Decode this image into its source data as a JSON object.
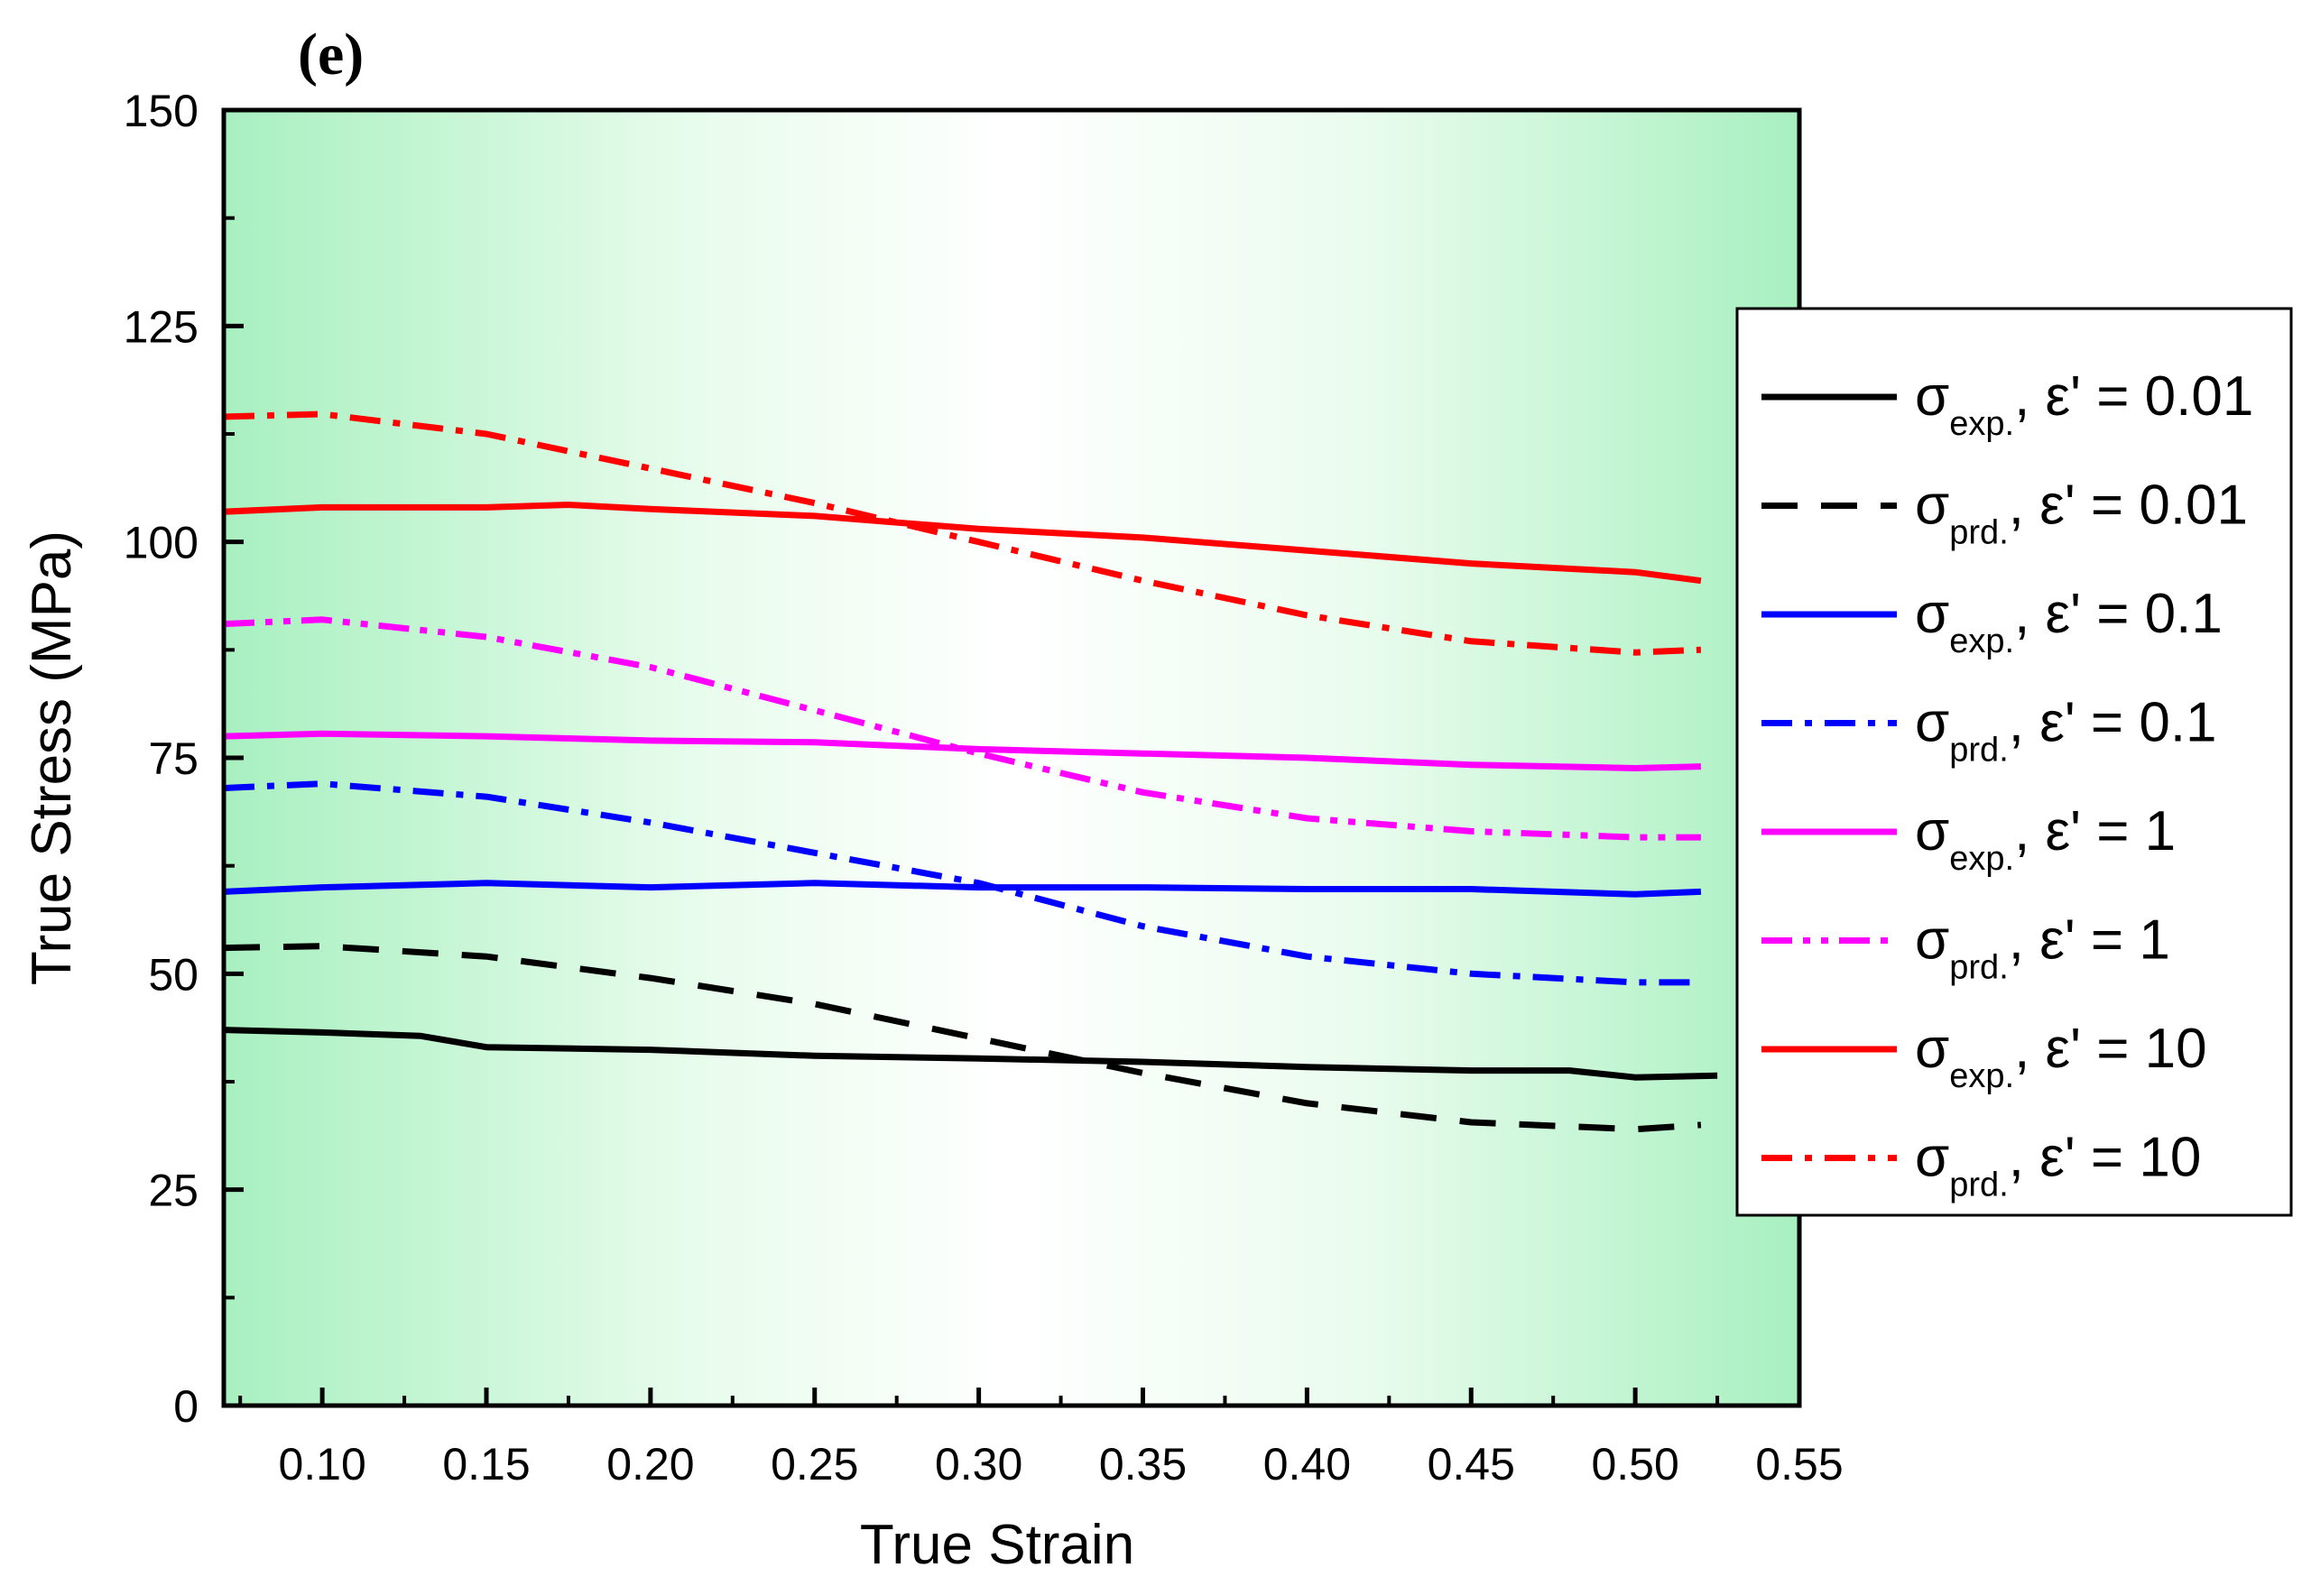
{
  "panel_label": "(e)",
  "chart_data": {
    "type": "line",
    "title": "",
    "xlabel": "True Strain",
    "ylabel": "True Stress (MPa)",
    "xlim": [
      0.07,
      0.55
    ],
    "ylim": [
      0,
      150
    ],
    "x_ticks": [
      0.1,
      0.15,
      0.2,
      0.25,
      0.3,
      0.35,
      0.4,
      0.45,
      0.5,
      0.55
    ],
    "x_tick_labels": [
      "0.10",
      "0.15",
      "0.20",
      "0.25",
      "0.30",
      "0.35",
      "0.40",
      "0.45",
      "0.50",
      "0.55"
    ],
    "y_ticks": [
      0,
      25,
      50,
      75,
      100,
      125,
      150
    ],
    "y_tick_labels": [
      "0",
      "25",
      "50",
      "75",
      "100",
      "125",
      "150"
    ],
    "grid": false,
    "legend_position": "right, outside plot",
    "background": "green-white-green horizontal gradient",
    "series": [
      {
        "name": "σexp., ε' = 0.01",
        "legend_symbol": "σ",
        "legend_sub": "exp.",
        "legend_rest": ", ε' = 0.01",
        "color": "#000000",
        "style": "solid",
        "x": [
          0.07,
          0.1,
          0.13,
          0.15,
          0.2,
          0.25,
          0.3,
          0.35,
          0.4,
          0.45,
          0.48,
          0.5,
          0.525
        ],
        "y": [
          43.5,
          43.2,
          42.8,
          41.5,
          41.2,
          40.5,
          40.2,
          39.8,
          39.2,
          38.8,
          38.8,
          38.0,
          38.2
        ]
      },
      {
        "name": "σprd., ε' = 0.01",
        "legend_symbol": "σ",
        "legend_sub": "prd.",
        "legend_rest": ", ε' = 0.01",
        "color": "#000000",
        "style": "dash",
        "x": [
          0.07,
          0.1,
          0.15,
          0.2,
          0.25,
          0.3,
          0.35,
          0.4,
          0.45,
          0.5,
          0.52
        ],
        "y": [
          53.0,
          53.2,
          52.0,
          49.5,
          46.5,
          42.5,
          38.5,
          35.0,
          32.8,
          32.0,
          32.5
        ]
      },
      {
        "name": "σexp., ε' = 0.1",
        "legend_symbol": "σ",
        "legend_sub": "exp.",
        "legend_rest": ", ε' = 0.1",
        "color": "#0000ff",
        "style": "solid",
        "x": [
          0.07,
          0.1,
          0.15,
          0.2,
          0.25,
          0.3,
          0.35,
          0.4,
          0.45,
          0.5,
          0.52
        ],
        "y": [
          59.5,
          60.0,
          60.5,
          60.0,
          60.5,
          60.0,
          60.0,
          59.8,
          59.8,
          59.2,
          59.5
        ]
      },
      {
        "name": "σprd., ε' = 0.1",
        "legend_symbol": "σ",
        "legend_sub": "prd.",
        "legend_rest": ", ε' = 0.1",
        "color": "#0000ff",
        "style": "dashdot",
        "x": [
          0.07,
          0.1,
          0.15,
          0.2,
          0.25,
          0.3,
          0.35,
          0.4,
          0.45,
          0.5,
          0.52
        ],
        "y": [
          71.5,
          72.0,
          70.5,
          67.5,
          64.0,
          60.5,
          55.5,
          52.0,
          50.0,
          49.0,
          49.0
        ]
      },
      {
        "name": "σexp., ε' = 1",
        "legend_symbol": "σ",
        "legend_sub": "exp.",
        "legend_rest": ", ε' = 1",
        "color": "#ff00ff",
        "style": "solid",
        "x": [
          0.07,
          0.1,
          0.15,
          0.2,
          0.25,
          0.3,
          0.35,
          0.4,
          0.45,
          0.5,
          0.52
        ],
        "y": [
          77.5,
          77.8,
          77.5,
          77.0,
          76.8,
          76.0,
          75.5,
          75.0,
          74.2,
          73.8,
          74.0
        ]
      },
      {
        "name": "σprd., ε' = 1",
        "legend_symbol": "σ",
        "legend_sub": "prd.",
        "legend_rest": ", ε' = 1",
        "color": "#ff00ff",
        "style": "dashdotdot",
        "x": [
          0.07,
          0.1,
          0.15,
          0.2,
          0.25,
          0.3,
          0.35,
          0.4,
          0.45,
          0.5,
          0.52
        ],
        "y": [
          90.5,
          91.0,
          89.0,
          85.5,
          80.5,
          75.5,
          71.0,
          68.0,
          66.5,
          65.8,
          65.8
        ]
      },
      {
        "name": "σexp., ε' = 10",
        "legend_symbol": "σ",
        "legend_sub": "exp.",
        "legend_rest": ", ε' = 10",
        "color": "#ff0000",
        "style": "solid",
        "x": [
          0.07,
          0.1,
          0.15,
          0.175,
          0.2,
          0.25,
          0.3,
          0.35,
          0.4,
          0.45,
          0.5,
          0.52
        ],
        "y": [
          103.5,
          104.0,
          104.0,
          104.3,
          103.8,
          103.0,
          101.5,
          100.5,
          99.0,
          97.5,
          96.5,
          95.5
        ]
      },
      {
        "name": "σprd., ε' = 10",
        "legend_symbol": "σ",
        "legend_sub": "prd.",
        "legend_rest": ", ε' = 10",
        "color": "#ff0000",
        "style": "dashdot",
        "x": [
          0.07,
          0.1,
          0.15,
          0.2,
          0.25,
          0.3,
          0.35,
          0.4,
          0.45,
          0.5,
          0.52
        ],
        "y": [
          114.5,
          114.8,
          112.5,
          108.5,
          104.5,
          100.0,
          95.5,
          91.5,
          88.5,
          87.2,
          87.5
        ]
      }
    ]
  }
}
